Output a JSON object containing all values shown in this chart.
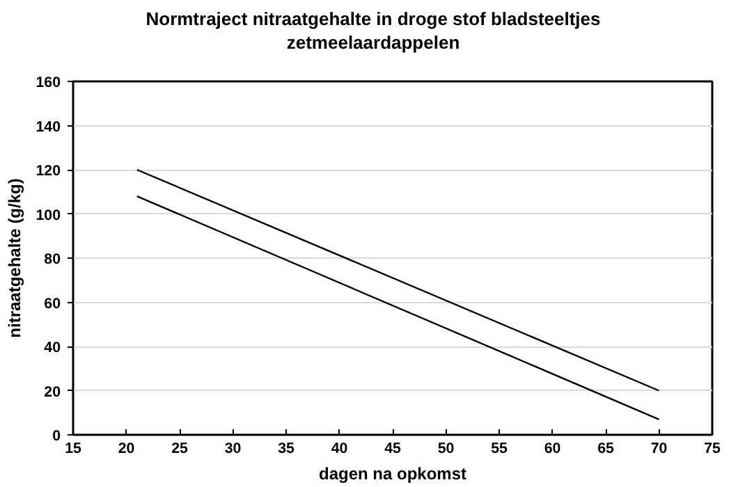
{
  "chart_data": {
    "type": "line",
    "title": "Normtraject nitraatgehalte in droge stof bladsteeltjes\nzetmeelaardappelen",
    "xlabel": "dagen na opkomst",
    "ylabel": "nitraatgehalte (g/kg)",
    "x": [
      21,
      70
    ],
    "series": [
      {
        "color": "#000000",
        "values": [
          120,
          20
        ]
      },
      {
        "color": "#000000",
        "values": [
          108,
          7
        ]
      }
    ],
    "xlim": [
      15,
      75
    ],
    "xticks": [
      15,
      20,
      25,
      30,
      35,
      40,
      45,
      50,
      55,
      60,
      65,
      70,
      75
    ],
    "ylim": [
      0,
      160
    ],
    "yticks": [
      0,
      20,
      40,
      60,
      80,
      100,
      120,
      140,
      160
    ],
    "grid": "y",
    "marker": "none",
    "line_style": "solid"
  }
}
